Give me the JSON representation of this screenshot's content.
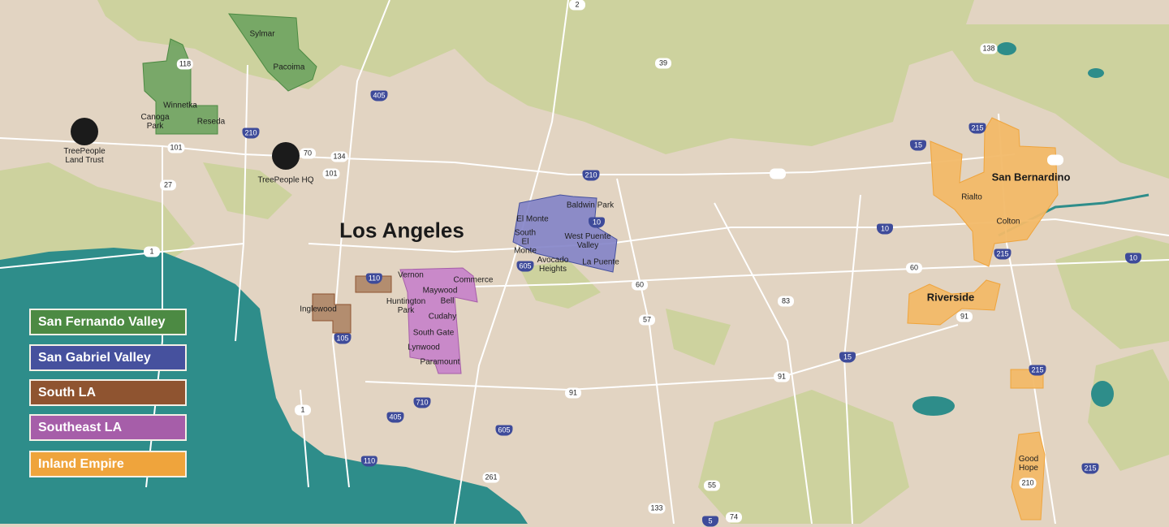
{
  "colors": {
    "land": "#e2d4c2",
    "hills": "#cdd29e",
    "ocean": "#2e8d8a",
    "roads": "#ffffff",
    "interstate": "#3e4b9a"
  },
  "legend": [
    {
      "label": "San Fernando Valley",
      "color": "#4c8a43"
    },
    {
      "label": "San Gabriel Valley",
      "color": "#46519e"
    },
    {
      "label": "South LA",
      "color": "#8f5430"
    },
    {
      "label": "Southeast LA",
      "color": "#a65ea9"
    },
    {
      "label": "Inland Empire",
      "color": "#efa43c"
    }
  ],
  "major_cities": [
    "Los Angeles",
    "San Bernardino",
    "Riverside"
  ],
  "places": [
    "Sylmar",
    "Pacoima",
    "Winnetka",
    "Canoga Park",
    "Reseda",
    "El Monte",
    "Baldwin Park",
    "South El Monte",
    "West Puente Valley",
    "Avocado Heights",
    "La Puente",
    "Vernon",
    "Commerce",
    "Maywood",
    "Bell",
    "Huntington Park",
    "Cudahy",
    "South Gate",
    "Lynwood",
    "Paramount",
    "Inglewood",
    "Rialto",
    "Colton",
    "Good Hope"
  ],
  "landmarks": [
    {
      "label": "TreePeople Land Trust",
      "icon": "mountain-logo-icon"
    },
    {
      "label": "TreePeople HQ",
      "icon": "oak-leaf-logo-icon"
    }
  ],
  "highways": {
    "interstates": [
      "405",
      "210",
      "210",
      "10",
      "605",
      "105",
      "110",
      "710",
      "405",
      "110",
      "605",
      "5",
      "15",
      "215",
      "215",
      "10",
      "215",
      "15",
      "215",
      "10"
    ],
    "routes": [
      "2",
      "39",
      "138",
      "118",
      "101",
      "70",
      "134",
      "101",
      "27",
      "1",
      "60",
      "57",
      "83",
      "91",
      "91",
      "60",
      "91",
      "1",
      "261",
      "55",
      "133",
      "74",
      "210"
    ]
  }
}
